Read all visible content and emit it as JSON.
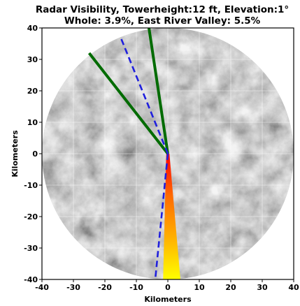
{
  "chart_data": {
    "type": "heatmap",
    "title": "Radar Visibility, Towerheight:12 ft, Elevation:1°",
    "subtitle": "Whole: 3.9%, East River Valley: 5.5%",
    "xlabel": "Kilometers",
    "ylabel": "Kilometers",
    "xlim": [
      -40,
      40
    ],
    "ylim": [
      -40,
      40
    ],
    "x_ticks": [
      -40,
      -30,
      -20,
      -10,
      0,
      10,
      20,
      30,
      40
    ],
    "y_ticks": [
      -40,
      -30,
      -20,
      -10,
      0,
      10,
      20,
      30,
      40
    ],
    "x_tick_labels": [
      "-40",
      "-30",
      "-20",
      "-10",
      "0",
      "10",
      "20",
      "30",
      "40"
    ],
    "y_tick_labels": [
      "-40",
      "-30",
      "-20",
      "-10",
      "0",
      "10",
      "20",
      "30",
      "40"
    ],
    "grid": true,
    "terrain_radius_km": 40,
    "terrain_colormap": "grayscale elevation",
    "radar_origin": [
      0,
      0
    ],
    "visibility_colors": [
      "#ff0000",
      "#ff6a00",
      "#ffb000",
      "#ffff00"
    ],
    "visibility_wedge": [
      [
        -0.5,
        0
      ],
      [
        0.5,
        0
      ],
      [
        4,
        -40
      ],
      [
        -1.5,
        -40
      ]
    ],
    "lines": [
      {
        "color": "#006b00",
        "style": "solid",
        "points": [
          [
            0,
            0
          ],
          [
            -25,
            32
          ]
        ]
      },
      {
        "color": "#006b00",
        "style": "solid",
        "points": [
          [
            0,
            0
          ],
          [
            -6,
            40
          ]
        ]
      },
      {
        "color": "#2020dd",
        "style": "dashed",
        "points": [
          [
            0,
            0
          ],
          [
            -15,
            37
          ]
        ]
      },
      {
        "color": "#2020dd",
        "style": "dashed",
        "points": [
          [
            0,
            0
          ],
          [
            -4,
            -40
          ]
        ]
      }
    ]
  }
}
